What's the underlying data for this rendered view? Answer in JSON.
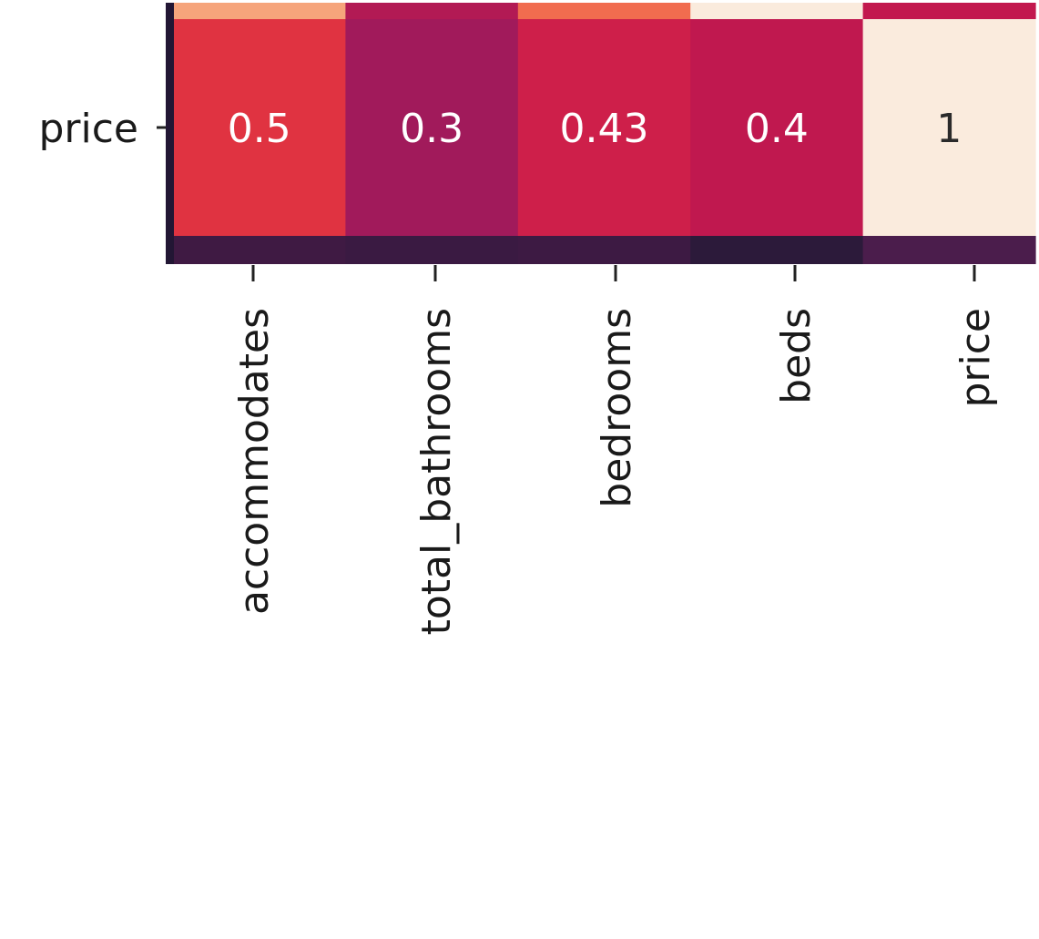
{
  "chart_data": {
    "type": "heatmap",
    "title": "",
    "xlabel": "",
    "ylabel": "",
    "columns": [
      "accommodates",
      "total_bathrooms",
      "bedrooms",
      "beds",
      "price"
    ],
    "rows": [
      "price"
    ],
    "values": [
      [
        0.5,
        0.3,
        0.43,
        0.4,
        1
      ]
    ],
    "value_labels": [
      "0.5",
      "0.3",
      "0.43",
      "0.4",
      "1"
    ],
    "cell_colors": [
      "#e03341",
      "#a11a5b",
      "#ce1f4a",
      "#c0184f",
      "#faebdd"
    ],
    "cell_text_colors": [
      "#ffffff",
      "#ffffff",
      "#ffffff",
      "#ffffff",
      "#2a2a2a"
    ],
    "partial_row_above_colors": [
      "#f6a47b",
      "#b21a54",
      "#f16c4f",
      "#faebdd",
      "#c2184e"
    ],
    "partial_row_below_colors": [
      "#3f1a43",
      "#3a1a42",
      "#3d1a43",
      "#2c1a3a",
      "#4b1d4c"
    ],
    "colormap": "rocket",
    "grid": false
  }
}
